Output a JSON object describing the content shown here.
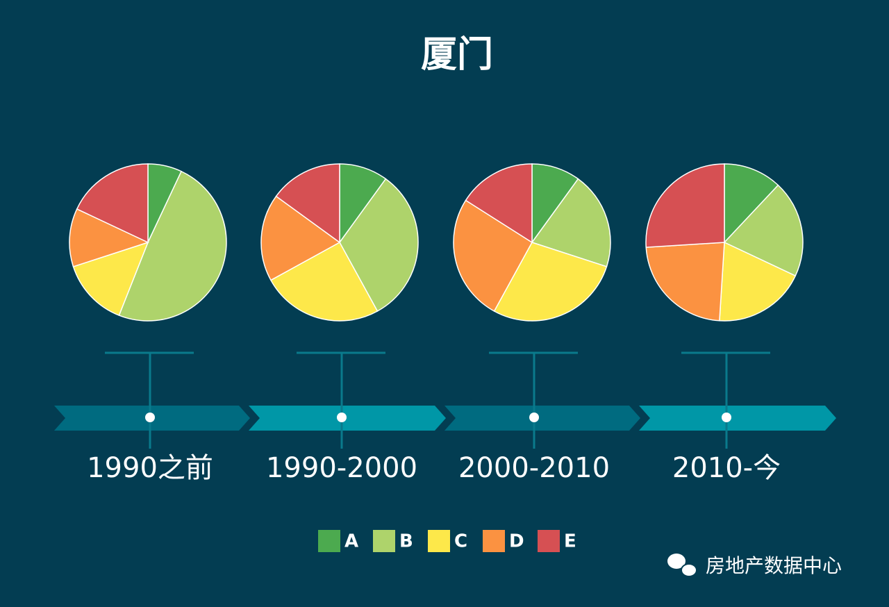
{
  "title": "厦门",
  "chart_data": [
    {
      "type": "pie",
      "title": "1990之前",
      "values": [
        7,
        49,
        14,
        12,
        18
      ]
    },
    {
      "type": "pie",
      "title": "1990-2000",
      "values": [
        10,
        32,
        25,
        18,
        15
      ]
    },
    {
      "type": "pie",
      "title": "2000-2010",
      "values": [
        10,
        20,
        28,
        26,
        16
      ]
    },
    {
      "type": "pie",
      "title": "2010-今",
      "values": [
        12,
        20,
        19,
        23,
        26
      ]
    }
  ],
  "legend": {
    "names": [
      "A",
      "B",
      "C",
      "D",
      "E"
    ],
    "colors": [
      "#4caa4f",
      "#aed36b",
      "#fde84a",
      "#fb9241",
      "#d65053"
    ]
  },
  "watermark": "房地产数据中心"
}
